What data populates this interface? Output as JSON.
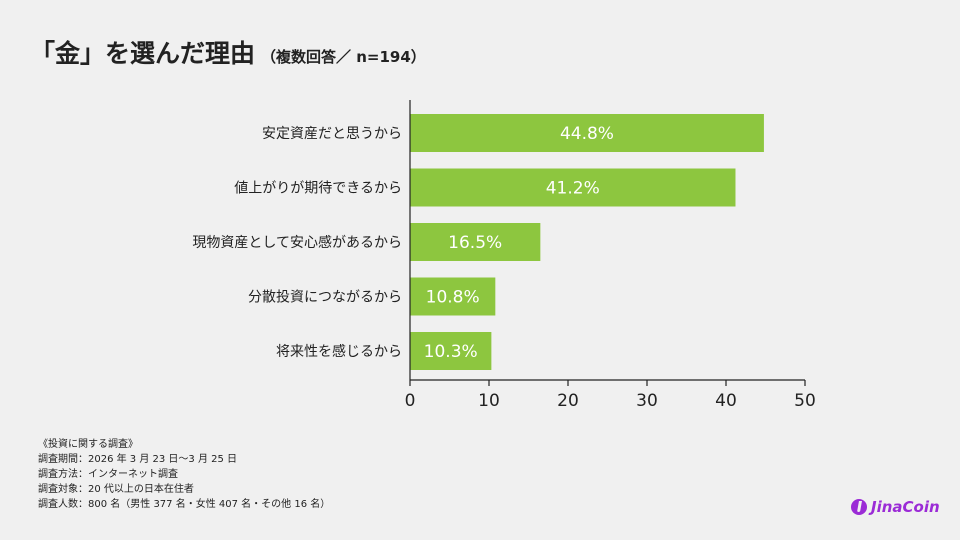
{
  "title": "「金」を選んだ理由",
  "subtitle": "（複数回答／ n=194）",
  "chart_data": {
    "type": "bar",
    "orientation": "horizontal",
    "categories": [
      "安定資産だと思うから",
      "値上がりが期待できるから",
      "現物資産として安心感があるから",
      "分散投資につながるから",
      "将来性を感じるから"
    ],
    "values": [
      44.8,
      41.2,
      16.5,
      10.8,
      10.3
    ],
    "data_labels": [
      "44.8%",
      "41.2%",
      "16.5%",
      "10.8%",
      "10.3%"
    ],
    "xlim": [
      0,
      50
    ],
    "ticks": [
      0,
      10,
      20,
      30,
      40,
      50
    ],
    "grid": false,
    "bar_color": "#8dc63f",
    "label_color": "#ffffff"
  },
  "notes": [
    "《投資に関する調査》",
    "調査期間：2026 年 3 月 23 日〜3 月 25 日",
    "調査方法：インターネット調査",
    "調査対象：20 代以上の日本在住者",
    "調査人数：800 名（男性 377 名・女性 407 名・その他 16 名）"
  ],
  "logo": {
    "text": "JinaCoin",
    "color": "#9b2bd6"
  }
}
